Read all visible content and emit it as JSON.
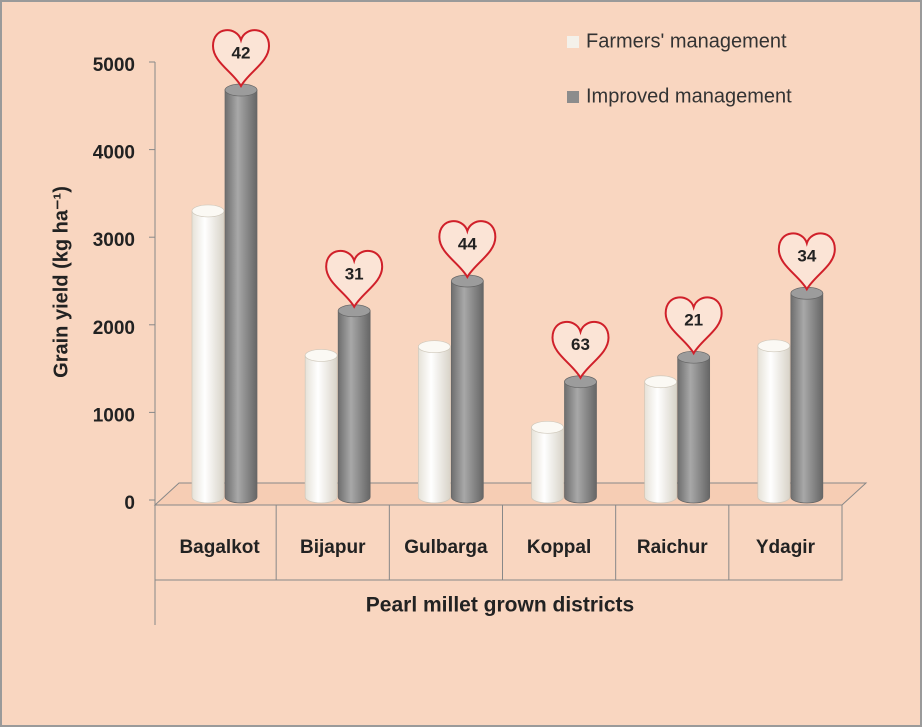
{
  "chart_data": {
    "type": "bar",
    "y_axis_label": "Grain yield (kg ha⁻¹)",
    "x_axis_label": "Pearl millet grown districts",
    "categories": [
      "Bagalkot",
      "Bijapur",
      "Gulbarga",
      "Koppal",
      "Raichur",
      "Ydagir"
    ],
    "series": [
      {
        "name": "Farmers' management",
        "color": "#f4f1ea",
        "values": [
          3300,
          1650,
          1750,
          830,
          1350,
          1760
        ]
      },
      {
        "name": "Improved management",
        "color": "#8c8c8c",
        "values": [
          4680,
          2160,
          2500,
          1350,
          1630,
          2360
        ]
      }
    ],
    "annotations": [
      42,
      31,
      44,
      63,
      21,
      34
    ],
    "ylim": [
      0,
      5000
    ],
    "yticks": [
      0,
      1000,
      2000,
      3000,
      4000,
      5000
    ],
    "legend": "top-right"
  }
}
